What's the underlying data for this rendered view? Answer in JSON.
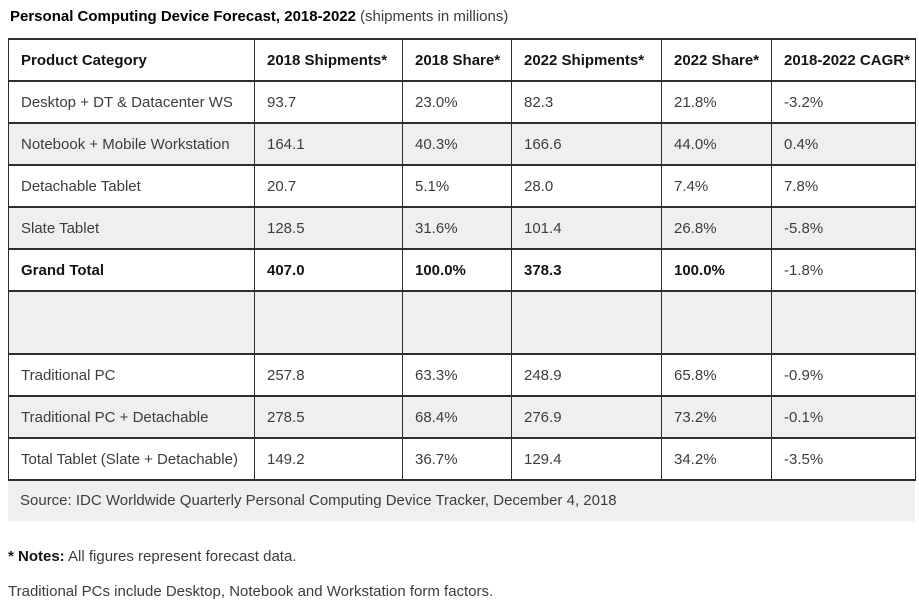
{
  "title": {
    "bold": "Personal Computing Device Forecast, 2018-2022",
    "subtitle": "(shipments in millions)"
  },
  "table": {
    "columns": [
      "Product Category",
      "2018 Shipments*",
      "2018 Share*",
      "2022 Shipments*",
      "2022 Share*",
      "2018-2022 CAGR*"
    ],
    "rows": [
      {
        "cells": [
          "Desktop + DT & Datacenter WS",
          "93.7",
          "23.0%",
          "82.3",
          "21.8%",
          "-3.2%"
        ]
      },
      {
        "cells": [
          "Notebook + Mobile Workstation",
          "164.1",
          "40.3%",
          "166.6",
          "44.0%",
          "0.4%"
        ]
      },
      {
        "cells": [
          "Detachable Tablet",
          "20.7",
          "5.1%",
          "28.0",
          "7.4%",
          "7.8%"
        ]
      },
      {
        "cells": [
          "Slate Tablet",
          "128.5",
          "31.6%",
          "101.4",
          "26.8%",
          "-5.8%"
        ]
      },
      {
        "cells": [
          "Grand Total",
          "407.0",
          "100.0%",
          "378.3",
          "100.0%",
          "-1.8%"
        ],
        "bold": [
          1,
          1,
          1,
          1,
          1,
          0
        ]
      },
      {
        "cells": [
          "",
          "",
          "",
          "",
          "",
          ""
        ],
        "spacer": true
      },
      {
        "cells": [
          "Traditional PC",
          "257.8",
          "63.3%",
          "248.9",
          "65.8%",
          "-0.9%"
        ]
      },
      {
        "cells": [
          "Traditional PC + Detachable",
          "278.5",
          "68.4%",
          "276.9",
          "73.2%",
          "-0.1%"
        ]
      },
      {
        "cells": [
          "Total Tablet (Slate + Detachable)",
          "149.2",
          "36.7%",
          "129.4",
          "34.2%",
          "-3.5%"
        ]
      }
    ],
    "source": "Source: IDC Worldwide Quarterly Personal Computing Device Tracker, December 4, 2018"
  },
  "notes": {
    "label": "* Notes:",
    "text": "All figures represent forecast data.",
    "line2": "Traditional PCs include Desktop, Notebook and Workstation form factors."
  },
  "colors": {
    "row_shade": "#efefef",
    "border": "#2e2e2e",
    "text": "#3d3d3d",
    "bold_text": "#141414"
  },
  "chart_data": {
    "type": "table",
    "title": "Personal Computing Device Forecast, 2018-2022",
    "subtitle": "shipments in millions",
    "columns": [
      "Product Category",
      "2018 Shipments",
      "2018 Share",
      "2022 Shipments",
      "2022 Share",
      "2018-2022 CAGR"
    ],
    "rows": [
      {
        "category": "Desktop + DT & Datacenter WS",
        "shipments_2018": 93.7,
        "share_2018_pct": 23.0,
        "shipments_2022": 82.3,
        "share_2022_pct": 21.8,
        "cagr_pct": -3.2
      },
      {
        "category": "Notebook + Mobile Workstation",
        "shipments_2018": 164.1,
        "share_2018_pct": 40.3,
        "shipments_2022": 166.6,
        "share_2022_pct": 44.0,
        "cagr_pct": 0.4
      },
      {
        "category": "Detachable Tablet",
        "shipments_2018": 20.7,
        "share_2018_pct": 5.1,
        "shipments_2022": 28.0,
        "share_2022_pct": 7.4,
        "cagr_pct": 7.8
      },
      {
        "category": "Slate Tablet",
        "shipments_2018": 128.5,
        "share_2018_pct": 31.6,
        "shipments_2022": 101.4,
        "share_2022_pct": 26.8,
        "cagr_pct": -5.8
      },
      {
        "category": "Grand Total",
        "shipments_2018": 407.0,
        "share_2018_pct": 100.0,
        "shipments_2022": 378.3,
        "share_2022_pct": 100.0,
        "cagr_pct": -1.8
      },
      {
        "category": "Traditional PC",
        "shipments_2018": 257.8,
        "share_2018_pct": 63.3,
        "shipments_2022": 248.9,
        "share_2022_pct": 65.8,
        "cagr_pct": -0.9
      },
      {
        "category": "Traditional PC + Detachable",
        "shipments_2018": 278.5,
        "share_2018_pct": 68.4,
        "shipments_2022": 276.9,
        "share_2022_pct": 73.2,
        "cagr_pct": -0.1
      },
      {
        "category": "Total Tablet (Slate + Detachable)",
        "shipments_2018": 149.2,
        "share_2018_pct": 36.7,
        "shipments_2022": 129.4,
        "share_2022_pct": 34.2,
        "cagr_pct": -3.5
      }
    ],
    "notes": [
      "All figures represent forecast data.",
      "Traditional PCs include Desktop, Notebook and Workstation form factors."
    ],
    "source": "IDC Worldwide Quarterly Personal Computing Device Tracker, December 4, 2018"
  }
}
